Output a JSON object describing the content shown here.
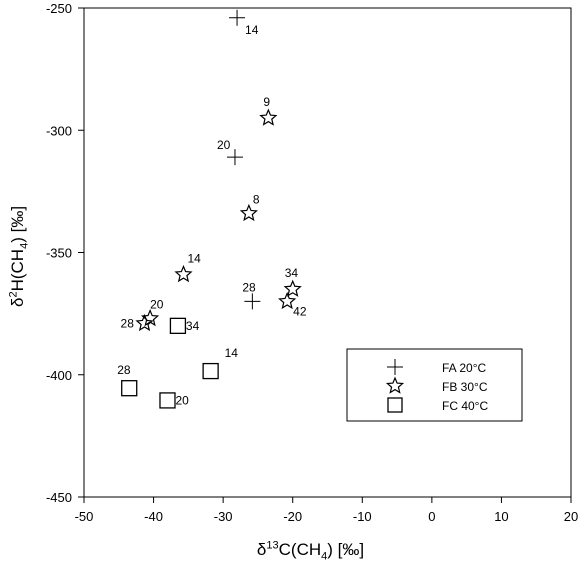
{
  "chart_data": {
    "type": "scatter",
    "xlabel": {
      "prefix": "δ",
      "sup": "13",
      "mid": "C(CH",
      "sub": "4",
      "suffix": ") [‰]"
    },
    "ylabel": {
      "prefix": "δ",
      "sup": "2",
      "mid": "H(CH",
      "sub": "4",
      "suffix": ") [‰]"
    },
    "xlim": [
      -50,
      20
    ],
    "ylim": [
      -450,
      -250
    ],
    "xticks": [
      -50,
      -40,
      -30,
      -20,
      -10,
      0,
      10,
      20
    ],
    "yticks": [
      -450,
      -400,
      -350,
      -300,
      -250
    ],
    "grid": false,
    "legend_position": "lower-right",
    "series": [
      {
        "name": "FA 20°C",
        "marker": "plus",
        "points": [
          {
            "x": -28,
            "y": -254,
            "label": "14"
          },
          {
            "x": -28.3,
            "y": -311,
            "label": "20"
          },
          {
            "x": -25.8,
            "y": -370,
            "label": "28"
          }
        ]
      },
      {
        "name": "FB 30°C",
        "marker": "star",
        "points": [
          {
            "x": -23.5,
            "y": -295,
            "label": "9"
          },
          {
            "x": -26.3,
            "y": -334,
            "label": "8"
          },
          {
            "x": -35.7,
            "y": -359,
            "label": "14"
          },
          {
            "x": -20,
            "y": -365,
            "label": "34"
          },
          {
            "x": -20.8,
            "y": -370,
            "label": "42"
          },
          {
            "x": -40.5,
            "y": -377,
            "label": "20"
          },
          {
            "x": -41.3,
            "y": -379,
            "label": "28"
          }
        ]
      },
      {
        "name": "FC 40°C",
        "marker": "square",
        "points": [
          {
            "x": -36.5,
            "y": -380,
            "label": "34"
          },
          {
            "x": -31.8,
            "y": -398.5,
            "label": "14"
          },
          {
            "x": -43.5,
            "y": -405.5,
            "label": "28"
          },
          {
            "x": -38,
            "y": -410.5,
            "label": "20"
          }
        ]
      }
    ]
  }
}
